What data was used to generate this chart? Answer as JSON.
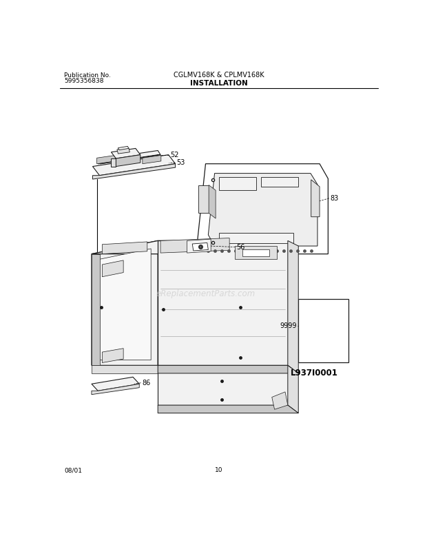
{
  "title_left_line1": "Publication No.",
  "title_left_line2": "5995356838",
  "title_center": "CGLMV168K & CPLMV168K",
  "title_section": "INSTALLATION",
  "footer_left": "08/01",
  "footer_center": "10",
  "diagram_label": "L937I0001",
  "bg_color": "#ffffff",
  "line_color": "#1a1a1a",
  "fill_white": "#ffffff",
  "fill_light": "#f2f2f2",
  "fill_mid": "#e0e0e0",
  "fill_dark": "#c8c8c8",
  "fill_xdark": "#b0b0b0",
  "watermark_text": "eReplacementParts.com",
  "watermark_color": "#cccccc"
}
